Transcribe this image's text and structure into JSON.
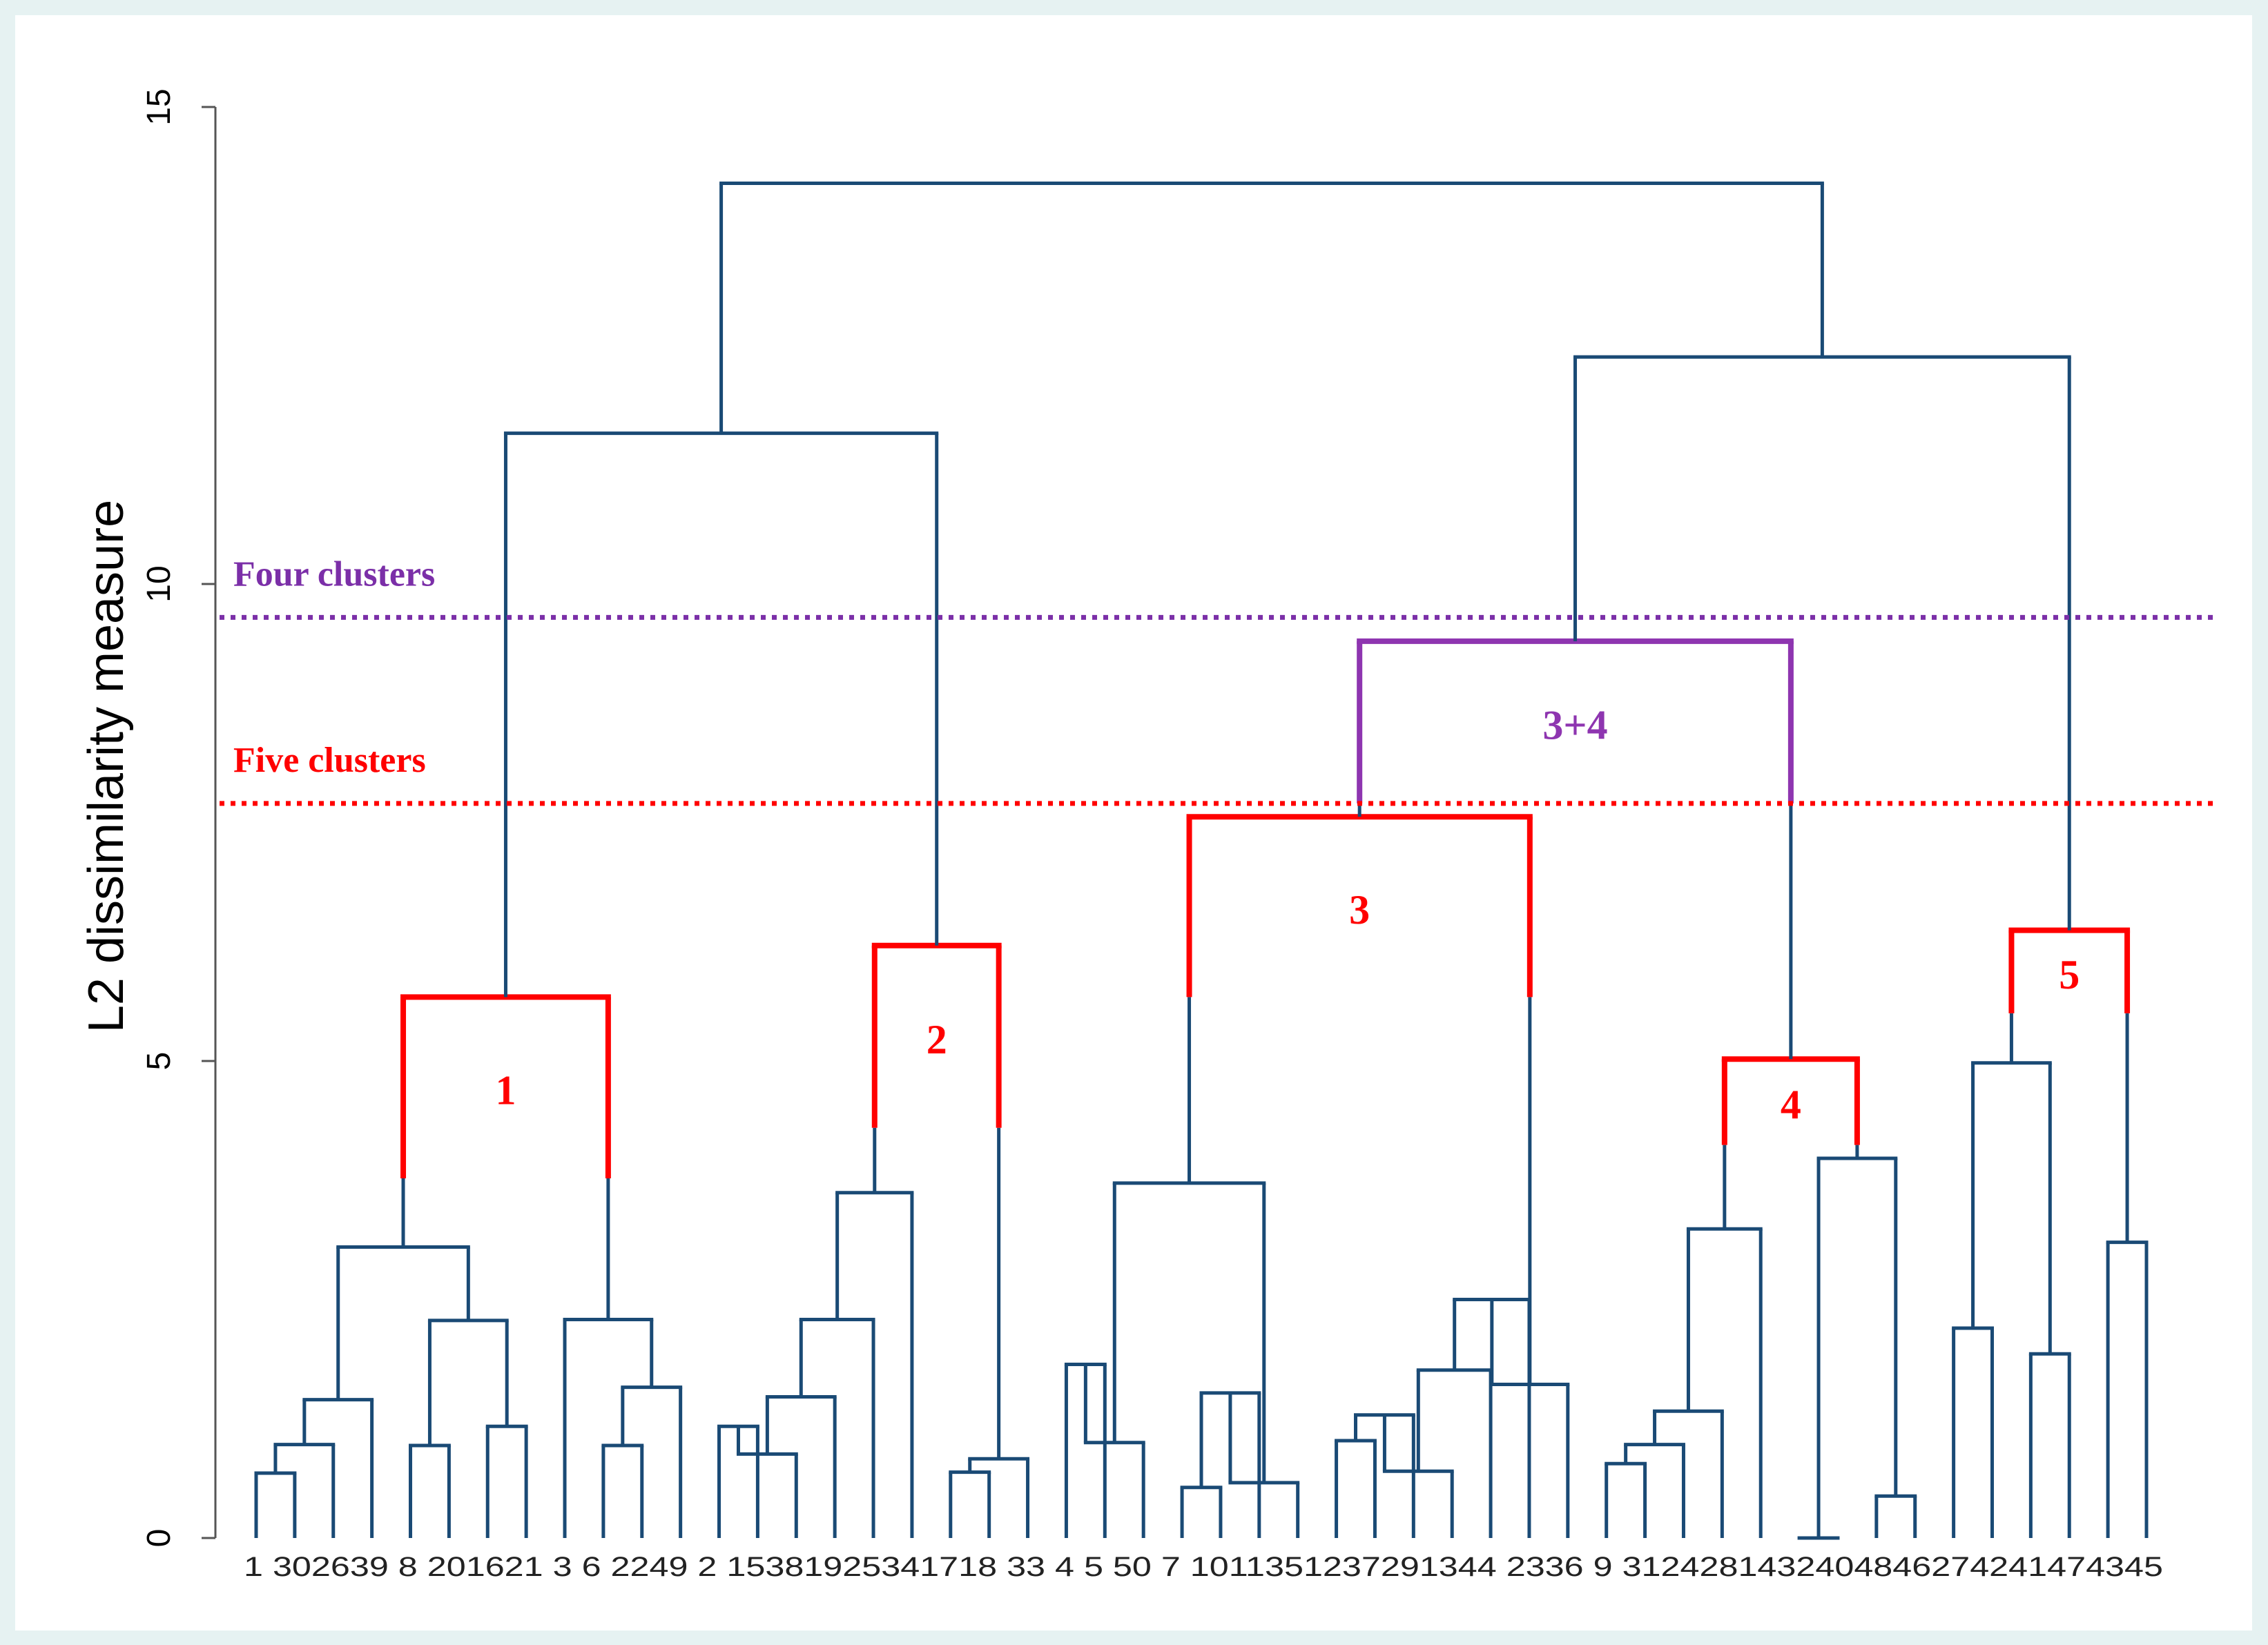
{
  "chart_data": {
    "type": "dendrogram",
    "ylabel": "L2 dissimilarity measure",
    "ylim": [
      0,
      15
    ],
    "yticks": [
      0,
      5,
      10,
      15
    ],
    "leaf_order": [
      1,
      30,
      26,
      39,
      8,
      20,
      16,
      21,
      3,
      6,
      22,
      49,
      2,
      15,
      38,
      19,
      25,
      34,
      17,
      18,
      33,
      4,
      5,
      50,
      7,
      10,
      11,
      35,
      12,
      37,
      29,
      13,
      44,
      23,
      36,
      9,
      31,
      24,
      28,
      14,
      32,
      40,
      48,
      46,
      27,
      42,
      41,
      47,
      43,
      45
    ],
    "leaf_label_text": "1 302639 8 201621 3 6 2249 2 15381925341718 33 4 5 50 7 1011351237291344 2336 9 3124281432404846274241474345",
    "merges": [
      {
        "a": 0,
        "b": 1,
        "h": 0.68
      },
      {
        "a": "m0",
        "b": 2,
        "h": 0.98
      },
      {
        "a": "m1",
        "b": 3,
        "h": 1.45
      },
      {
        "a": 4,
        "b": 5,
        "h": 0.97
      },
      {
        "a": 6,
        "b": 7,
        "h": 1.17
      },
      {
        "a": "m3",
        "b": "m4",
        "h": 2.28
      },
      {
        "a": "m2",
        "b": "m5",
        "h": 3.05
      },
      {
        "a": 9,
        "b": 10,
        "h": 0.97
      },
      {
        "a": "m7",
        "b": 11,
        "h": 1.58
      },
      {
        "a": 8,
        "b": "m8",
        "h": 2.29
      },
      {
        "a": "m6",
        "b": "m9",
        "h": 5.67
      },
      {
        "a": 12,
        "b": 13,
        "h": 1.17
      },
      {
        "a": "m11",
        "b": 14,
        "h": 0.88
      },
      {
        "a": "m12",
        "b": 15,
        "h": 1.48
      },
      {
        "a": "m13",
        "b": 16,
        "h": 2.29
      },
      {
        "a": "m14",
        "b": 17,
        "h": 3.62
      },
      {
        "a": 18,
        "b": 19,
        "h": 0.69
      },
      {
        "a": "m16",
        "b": 20,
        "h": 0.83
      },
      {
        "a": "m15",
        "b": "m17",
        "h": 6.21
      },
      {
        "a": "m10",
        "b": "m18",
        "h": 11.58
      },
      {
        "a": 21,
        "b": 22,
        "h": 1.82
      },
      {
        "a": "m20",
        "b": 23,
        "h": 1.0
      },
      {
        "a": 24,
        "b": 25,
        "h": 0.53
      },
      {
        "a": "m22",
        "b": 26,
        "h": 1.52
      },
      {
        "a": "m23",
        "b": 27,
        "h": 0.58
      },
      {
        "a": "m21",
        "b": "m24",
        "h": 3.72
      },
      {
        "a": 28,
        "b": 29,
        "h": 1.02
      },
      {
        "a": "m26",
        "b": 30,
        "h": 1.29
      },
      {
        "a": "m27",
        "b": 31,
        "h": 0.7
      },
      {
        "a": "m28",
        "b": 32,
        "h": 1.76
      },
      {
        "a": "m29",
        "b": 33,
        "h": 2.5
      },
      {
        "a": "m30",
        "b": 34,
        "h": 1.61
      },
      {
        "a": "m25",
        "b": "m31",
        "h": 7.56
      },
      {
        "a": 35,
        "b": 36,
        "h": 0.78
      },
      {
        "a": "m33",
        "b": 37,
        "h": 0.98
      },
      {
        "a": "m34",
        "b": 38,
        "h": 1.33
      },
      {
        "a": "m35",
        "b": 39,
        "h": 3.24
      },
      {
        "a": 40,
        "b": 41,
        "h": 0.0
      },
      {
        "a": 42,
        "b": 43,
        "h": 0.44
      },
      {
        "a": "m37",
        "b": "m38",
        "h": 3.98
      },
      {
        "a": "m36",
        "b": "m39",
        "h": 5.02
      },
      {
        "a": "m32",
        "b": "m40",
        "h": 9.4
      },
      {
        "a": 44,
        "b": 45,
        "h": 2.2
      },
      {
        "a": 46,
        "b": 47,
        "h": 1.93
      },
      {
        "a": "m42",
        "b": "m43",
        "h": 4.98
      },
      {
        "a": 48,
        "b": 49,
        "h": 3.1
      },
      {
        "a": "m44",
        "b": "m45",
        "h": 6.37
      },
      {
        "a": "m41",
        "b": "m46",
        "h": 12.38
      },
      {
        "a": "m19",
        "b": "m47",
        "h": 14.2
      }
    ],
    "cut_lines": [
      {
        "label": "Four clusters",
        "y": 9.65,
        "color": "#7b2fa8"
      },
      {
        "label": "Five clusters",
        "y": 7.7,
        "color": "#ff0000"
      }
    ],
    "highlight_merges": [
      {
        "merge": "m10",
        "color": "#ff0000",
        "stem_to": 3.77,
        "label": "1"
      },
      {
        "merge": "m18",
        "color": "#ff0000",
        "stem_to": 4.3,
        "label": "2"
      },
      {
        "merge": "m32",
        "color": "#ff0000",
        "stem_to": 5.67,
        "label": "3"
      },
      {
        "merge": "m40",
        "color": "#ff0000",
        "stem_to": 4.12,
        "label": "4"
      },
      {
        "merge": "m46",
        "color": "#ff0000",
        "stem_to": 5.5,
        "label": "5"
      },
      {
        "merge": "m41",
        "color": "#8e35b0",
        "stem_to": 7.7,
        "label": "3+4"
      }
    ],
    "colors": {
      "tree": "#1a4a75",
      "axis": "#555555",
      "plot_bg": "#ffffff",
      "outer_bg": "#e6f2f2"
    }
  }
}
